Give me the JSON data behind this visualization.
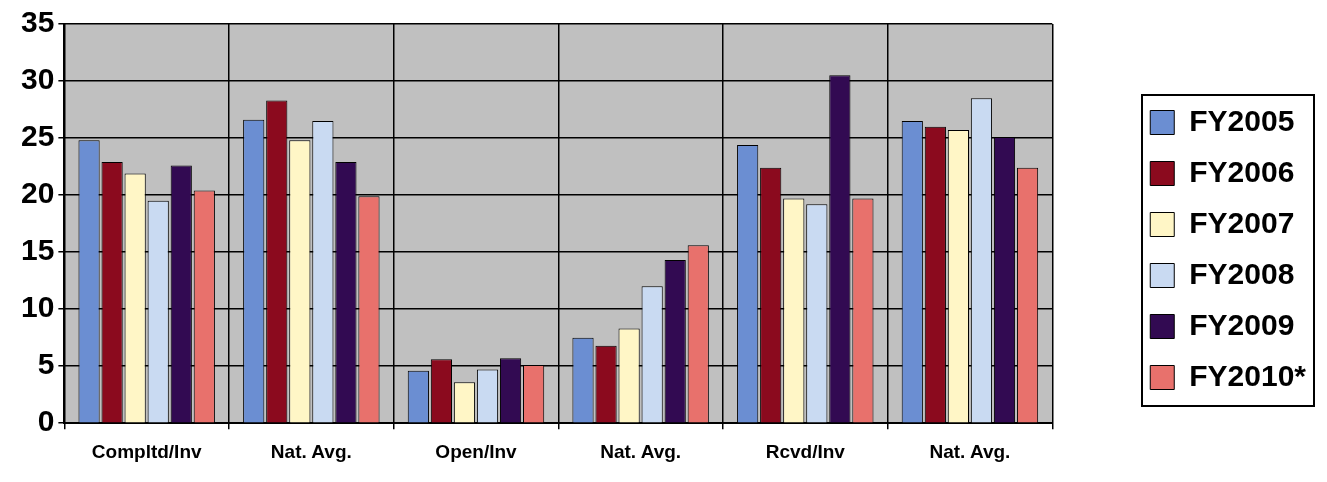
{
  "chart_data": {
    "type": "bar",
    "categories": [
      "Compltd/Inv",
      "Nat. Avg.",
      "Open/Inv",
      "Nat. Avg.",
      "Rcvd/Inv",
      "Nat. Avg."
    ],
    "series": [
      {
        "name": "FY2005",
        "color": "#6b8ed2",
        "values": [
          24.8,
          26.6,
          4.6,
          7.5,
          24.4,
          26.5
        ]
      },
      {
        "name": "FY2006",
        "color": "#8b0a1e",
        "values": [
          22.9,
          28.3,
          5.6,
          6.8,
          22.4,
          26.0
        ]
      },
      {
        "name": "FY2007",
        "color": "#fff6c6",
        "values": [
          21.9,
          24.8,
          3.6,
          8.3,
          19.7,
          25.7
        ]
      },
      {
        "name": "FY2008",
        "color": "#c9daf2",
        "values": [
          19.5,
          26.5,
          4.7,
          12.0,
          19.2,
          28.5
        ]
      },
      {
        "name": "FY2009",
        "color": "#320a52",
        "values": [
          22.6,
          22.9,
          5.7,
          14.3,
          30.5,
          25.1
        ]
      },
      {
        "name": "FY2010*",
        "color": "#e8716c",
        "values": [
          20.4,
          19.9,
          5.1,
          15.6,
          19.7,
          22.4
        ]
      }
    ],
    "ylim": [
      0,
      35
    ],
    "yticks": [
      0,
      5,
      10,
      15,
      20,
      25,
      30,
      35
    ],
    "grid": true,
    "legend": "right"
  }
}
